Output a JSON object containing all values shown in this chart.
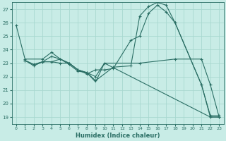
{
  "xlabel": "Humidex (Indice chaleur)",
  "bg_color": "#c8ece6",
  "grid_color": "#a8d8d0",
  "line_color": "#2a6e64",
  "xlim": [
    -0.5,
    23.5
  ],
  "ylim": [
    18.5,
    27.5
  ],
  "xticks": [
    0,
    1,
    2,
    3,
    4,
    5,
    6,
    7,
    8,
    9,
    10,
    11,
    12,
    13,
    14,
    15,
    16,
    17,
    18,
    19,
    20,
    21,
    22,
    23
  ],
  "yticks": [
    19,
    20,
    21,
    22,
    23,
    24,
    25,
    26,
    27
  ],
  "lines": [
    {
      "x": [
        0,
        1,
        3,
        4,
        5,
        6,
        7,
        8,
        9,
        11,
        13,
        14,
        15,
        16,
        17,
        18,
        21,
        22,
        23
      ],
      "y": [
        25.8,
        23.3,
        23.3,
        23.8,
        23.3,
        22.9,
        22.4,
        22.3,
        21.7,
        22.7,
        22.8,
        26.5,
        27.2,
        27.5,
        27.3,
        26.0,
        21.4,
        19.0,
        19.0
      ],
      "marker": "+"
    },
    {
      "x": [
        1,
        2,
        3,
        4,
        5,
        6,
        7,
        8,
        9,
        10,
        11,
        13,
        14,
        15,
        16,
        17,
        18,
        21,
        22,
        23
      ],
      "y": [
        23.2,
        22.8,
        23.1,
        23.5,
        23.3,
        23.0,
        22.5,
        22.2,
        22.5,
        22.5,
        22.6,
        24.7,
        25.0,
        26.7,
        27.3,
        26.8,
        26.0,
        21.4,
        19.1,
        19.1
      ],
      "marker": "+"
    },
    {
      "x": [
        1,
        2,
        3,
        4,
        5,
        6,
        7,
        8,
        9,
        10,
        14,
        18,
        21,
        22,
        23
      ],
      "y": [
        23.2,
        22.9,
        23.1,
        23.1,
        23.0,
        23.0,
        22.5,
        22.3,
        22.0,
        23.0,
        23.0,
        23.3,
        23.3,
        21.4,
        19.0
      ],
      "marker": "+"
    },
    {
      "x": [
        1,
        2,
        3,
        4,
        5,
        6,
        7,
        8,
        9,
        10,
        22,
        23
      ],
      "y": [
        23.2,
        22.9,
        23.1,
        23.1,
        23.3,
        23.0,
        22.5,
        22.3,
        21.6,
        23.0,
        19.0,
        19.0
      ],
      "marker": null
    }
  ]
}
